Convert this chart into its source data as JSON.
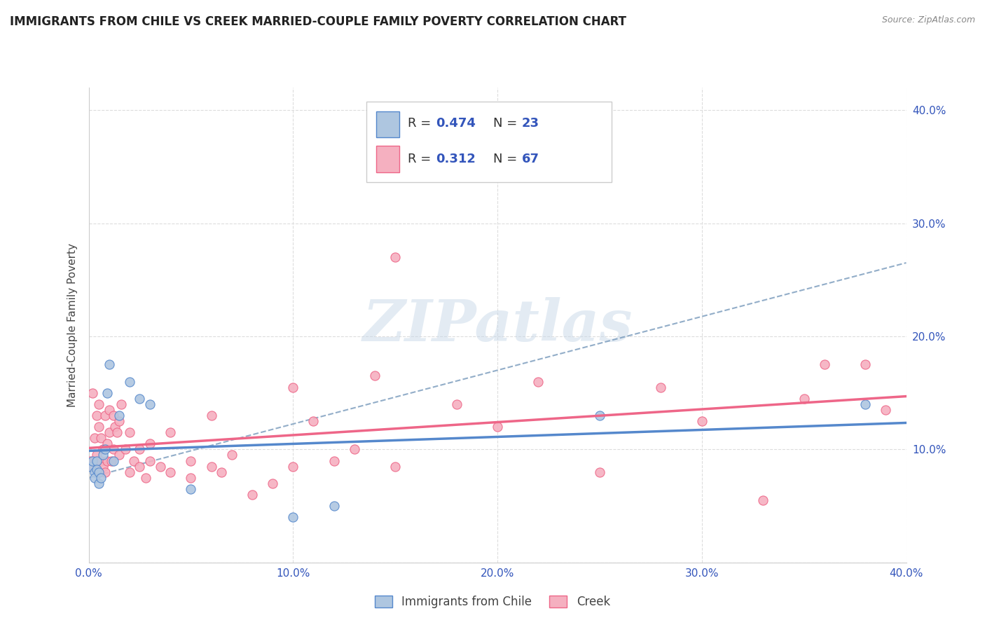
{
  "title": "IMMIGRANTS FROM CHILE VS CREEK MARRIED-COUPLE FAMILY POVERTY CORRELATION CHART",
  "source": "Source: ZipAtlas.com",
  "ylabel": "Married-Couple Family Poverty",
  "xlim": [
    0.0,
    0.4
  ],
  "ylim": [
    0.0,
    0.42
  ],
  "xticks": [
    0.0,
    0.1,
    0.2,
    0.3,
    0.4
  ],
  "yticks": [
    0.0,
    0.1,
    0.2,
    0.3,
    0.4
  ],
  "xticklabels": [
    "0.0%",
    "10.0%",
    "20.0%",
    "30.0%",
    "40.0%"
  ],
  "yticklabels_right": [
    "",
    "10.0%",
    "20.0%",
    "30.0%",
    "40.0%"
  ],
  "legend_labels": [
    "Immigrants from Chile",
    "Creek"
  ],
  "series1_color": "#aec6e0",
  "series2_color": "#f5b0c0",
  "series1_R": 0.474,
  "series1_N": 23,
  "series2_R": 0.312,
  "series2_N": 67,
  "watermark": "ZIPatlas",
  "series1_points": [
    [
      0.001,
      0.085
    ],
    [
      0.002,
      0.09
    ],
    [
      0.003,
      0.08
    ],
    [
      0.003,
      0.075
    ],
    [
      0.004,
      0.09
    ],
    [
      0.004,
      0.082
    ],
    [
      0.005,
      0.07
    ],
    [
      0.005,
      0.08
    ],
    [
      0.006,
      0.075
    ],
    [
      0.007,
      0.095
    ],
    [
      0.008,
      0.1
    ],
    [
      0.009,
      0.15
    ],
    [
      0.01,
      0.175
    ],
    [
      0.012,
      0.09
    ],
    [
      0.015,
      0.13
    ],
    [
      0.02,
      0.16
    ],
    [
      0.025,
      0.145
    ],
    [
      0.03,
      0.14
    ],
    [
      0.05,
      0.065
    ],
    [
      0.1,
      0.04
    ],
    [
      0.12,
      0.05
    ],
    [
      0.25,
      0.13
    ],
    [
      0.38,
      0.14
    ]
  ],
  "series2_points": [
    [
      0.001,
      0.09
    ],
    [
      0.002,
      0.085
    ],
    [
      0.002,
      0.15
    ],
    [
      0.003,
      0.11
    ],
    [
      0.003,
      0.09
    ],
    [
      0.004,
      0.13
    ],
    [
      0.004,
      0.095
    ],
    [
      0.005,
      0.08
    ],
    [
      0.005,
      0.14
    ],
    [
      0.005,
      0.12
    ],
    [
      0.006,
      0.09
    ],
    [
      0.006,
      0.11
    ],
    [
      0.007,
      0.085
    ],
    [
      0.007,
      0.1
    ],
    [
      0.008,
      0.08
    ],
    [
      0.008,
      0.13
    ],
    [
      0.009,
      0.09
    ],
    [
      0.009,
      0.105
    ],
    [
      0.01,
      0.115
    ],
    [
      0.01,
      0.135
    ],
    [
      0.011,
      0.09
    ],
    [
      0.012,
      0.1
    ],
    [
      0.012,
      0.13
    ],
    [
      0.013,
      0.12
    ],
    [
      0.014,
      0.115
    ],
    [
      0.015,
      0.125
    ],
    [
      0.015,
      0.095
    ],
    [
      0.016,
      0.14
    ],
    [
      0.018,
      0.1
    ],
    [
      0.02,
      0.08
    ],
    [
      0.02,
      0.115
    ],
    [
      0.022,
      0.09
    ],
    [
      0.025,
      0.085
    ],
    [
      0.025,
      0.1
    ],
    [
      0.028,
      0.075
    ],
    [
      0.03,
      0.09
    ],
    [
      0.03,
      0.105
    ],
    [
      0.035,
      0.085
    ],
    [
      0.04,
      0.08
    ],
    [
      0.04,
      0.115
    ],
    [
      0.05,
      0.075
    ],
    [
      0.05,
      0.09
    ],
    [
      0.06,
      0.085
    ],
    [
      0.06,
      0.13
    ],
    [
      0.065,
      0.08
    ],
    [
      0.07,
      0.095
    ],
    [
      0.08,
      0.06
    ],
    [
      0.09,
      0.07
    ],
    [
      0.1,
      0.155
    ],
    [
      0.1,
      0.085
    ],
    [
      0.11,
      0.125
    ],
    [
      0.12,
      0.09
    ],
    [
      0.13,
      0.1
    ],
    [
      0.14,
      0.165
    ],
    [
      0.15,
      0.085
    ],
    [
      0.15,
      0.27
    ],
    [
      0.18,
      0.14
    ],
    [
      0.2,
      0.12
    ],
    [
      0.22,
      0.16
    ],
    [
      0.25,
      0.08
    ],
    [
      0.28,
      0.155
    ],
    [
      0.3,
      0.125
    ],
    [
      0.33,
      0.055
    ],
    [
      0.35,
      0.145
    ],
    [
      0.38,
      0.175
    ],
    [
      0.39,
      0.135
    ],
    [
      0.36,
      0.175
    ]
  ],
  "grid_color": "#dddddd",
  "background_color": "#ffffff",
  "title_color": "#222222",
  "axis_label_color": "#444444",
  "tick_color": "#3355bb",
  "line1_color": "#5588cc",
  "line2_color": "#ee6688",
  "line_dashed_color": "#7799bb",
  "source_color": "#888888",
  "legend_border_color": "#cccccc"
}
